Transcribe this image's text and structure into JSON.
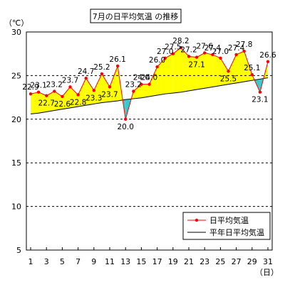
{
  "chart_data": {
    "type": "line",
    "title": "7月の日平均気温 の推移",
    "ylabel": "（℃）",
    "xlabel": "（日）",
    "ylim": [
      5,
      30
    ],
    "yticks": [
      5,
      10,
      15,
      20,
      25,
      30
    ],
    "grid": true,
    "legend_position": "bottom-right",
    "x": [
      1,
      2,
      3,
      4,
      5,
      6,
      7,
      8,
      9,
      10,
      11,
      12,
      13,
      14,
      15,
      16,
      17,
      18,
      19,
      20,
      21,
      22,
      23,
      24,
      25,
      26,
      27,
      28,
      29,
      30,
      31
    ],
    "xtick_labels": [
      "1",
      "3",
      "5",
      "7",
      "9",
      "11",
      "13",
      "15",
      "17",
      "19",
      "21",
      "23",
      "25",
      "27",
      "29",
      "31"
    ],
    "series": [
      {
        "name": "日平均気温",
        "color": "#ff0000",
        "values": [
          22.9,
          23.1,
          22.7,
          23.2,
          22.6,
          23.7,
          22.8,
          24.7,
          23.3,
          25.2,
          23.7,
          26.1,
          20.0,
          23.2,
          24.0,
          24.0,
          26.0,
          27.0,
          27.5,
          28.2,
          27.2,
          27.1,
          27.6,
          27.4,
          27.0,
          25.5,
          27.4,
          27.8,
          25.1,
          23.1,
          26.6
        ]
      },
      {
        "name": "平年日平均気温",
        "color": "#000000",
        "values": [
          20.6,
          20.7,
          20.85,
          21.0,
          21.15,
          21.3,
          21.45,
          21.6,
          21.75,
          21.9,
          22.0,
          22.1,
          22.25,
          22.35,
          22.45,
          22.6,
          22.75,
          22.9,
          23.0,
          23.1,
          23.25,
          23.4,
          23.55,
          23.7,
          23.85,
          24.0,
          24.15,
          24.3,
          24.45,
          24.6,
          24.75
        ]
      }
    ],
    "fill_above_color": "#ffff00",
    "fill_below_color": "#33cccc"
  }
}
